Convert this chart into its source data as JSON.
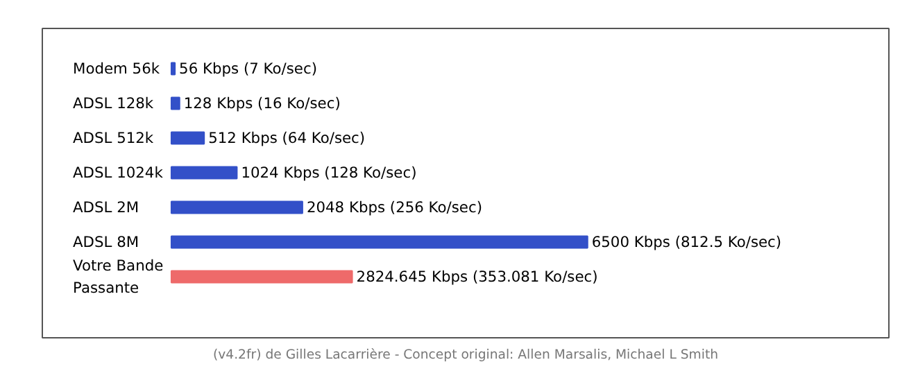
{
  "chart_data": {
    "type": "bar",
    "orientation": "horizontal",
    "categories": [
      "Modem 56k",
      "ADSL 128k",
      "ADSL 512k",
      "ADSL 1024k",
      "ADSL 2M",
      "ADSL 8M",
      "Votre Bande\nPassante"
    ],
    "values": [
      56,
      128,
      512,
      1024,
      2048,
      6500,
      2824.645
    ],
    "colors": [
      "#3350c8",
      "#3350c8",
      "#3350c8",
      "#3350c8",
      "#3350c8",
      "#3350c8",
      "#ee6a6a"
    ],
    "value_labels": [
      "56 Kbps (7 Ko/sec)",
      "128 Kbps (16 Ko/sec)",
      "512 Kbps (64 Ko/sec)",
      "1024 Kbps (128 Ko/sec)",
      "2048 Kbps (256 Ko/sec)",
      "6500 Kbps (812.5 Ko/sec)",
      "2824.645 Kbps (353.081 Ko/sec)"
    ],
    "annotations": [
      "(v4.2fr) de Gilles Lacarrière - Concept original: Allen Marsalis, Michael L Smith"
    ]
  }
}
